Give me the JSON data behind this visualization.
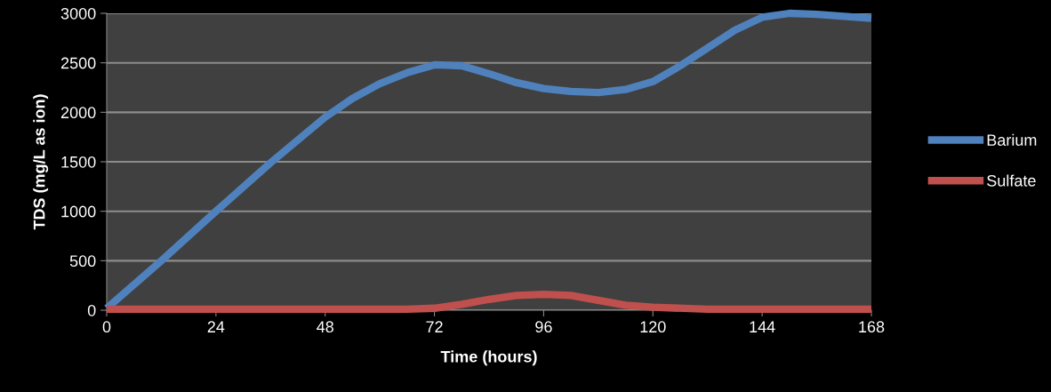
{
  "chart_data": {
    "type": "line",
    "xlabel": "Time (hours)",
    "ylabel": "TDS (mg/L as ion)",
    "series": [
      {
        "name": "Barium",
        "color": "#4f81bd",
        "x": [
          0,
          12,
          24,
          36,
          48,
          54,
          60,
          66,
          72,
          78,
          84,
          90,
          96,
          102,
          108,
          114,
          120,
          126,
          132,
          138,
          144,
          150,
          156,
          162,
          168
        ],
        "values": [
          20,
          500,
          1000,
          1490,
          1950,
          2140,
          2290,
          2400,
          2480,
          2470,
          2390,
          2300,
          2240,
          2210,
          2200,
          2230,
          2310,
          2470,
          2650,
          2830,
          2960,
          3000,
          2990,
          2970,
          2950
        ]
      },
      {
        "name": "Sulfate",
        "color": "#c0504d",
        "x": [
          0,
          24,
          48,
          60,
          66,
          72,
          78,
          84,
          90,
          96,
          102,
          108,
          114,
          120,
          132,
          168
        ],
        "values": [
          10,
          10,
          10,
          10,
          10,
          20,
          60,
          110,
          150,
          160,
          150,
          100,
          50,
          30,
          10,
          10
        ]
      }
    ],
    "xlim": [
      0,
      168
    ],
    "xticks": [
      0,
      24,
      48,
      72,
      96,
      120,
      144,
      168
    ],
    "ylim": [
      0,
      3000
    ],
    "yticks": [
      0,
      500,
      1000,
      1500,
      2000,
      2500,
      3000
    ],
    "grid": "y",
    "legend": "right",
    "marker": "none",
    "line_style": "solid"
  }
}
